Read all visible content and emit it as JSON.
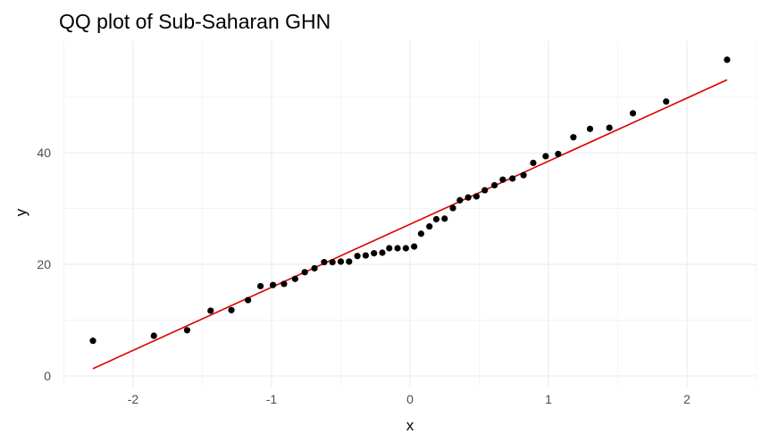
{
  "chart_data": {
    "type": "scatter",
    "title": "QQ plot of Sub-Saharan GHN",
    "xlabel": "x",
    "ylabel": "y",
    "xlim": [
      -2.5,
      2.5
    ],
    "ylim": [
      0,
      57
    ],
    "x_ticks": [
      -2,
      -1,
      0,
      1,
      2
    ],
    "y_ticks": [
      0,
      20,
      40
    ],
    "x_tick_labels": [
      "-2",
      "-1",
      "0",
      "1",
      "2"
    ],
    "y_tick_labels": [
      "0",
      "20",
      "40"
    ],
    "grid": true,
    "legend": "none",
    "point_color": "#000000",
    "line_color": "#dd0000",
    "points": [
      {
        "x": -2.29,
        "y": 6.3
      },
      {
        "x": -1.85,
        "y": 7.2
      },
      {
        "x": -1.61,
        "y": 8.2
      },
      {
        "x": -1.44,
        "y": 11.7
      },
      {
        "x": -1.29,
        "y": 11.8
      },
      {
        "x": -1.17,
        "y": 13.6
      },
      {
        "x": -1.08,
        "y": 16.1
      },
      {
        "x": -0.99,
        "y": 16.3
      },
      {
        "x": -0.91,
        "y": 16.5
      },
      {
        "x": -0.83,
        "y": 17.4
      },
      {
        "x": -0.76,
        "y": 18.6
      },
      {
        "x": -0.69,
        "y": 19.3
      },
      {
        "x": -0.62,
        "y": 20.4
      },
      {
        "x": -0.56,
        "y": 20.4
      },
      {
        "x": -0.5,
        "y": 20.5
      },
      {
        "x": -0.44,
        "y": 20.5
      },
      {
        "x": -0.38,
        "y": 21.5
      },
      {
        "x": -0.32,
        "y": 21.6
      },
      {
        "x": -0.26,
        "y": 22.0
      },
      {
        "x": -0.2,
        "y": 22.1
      },
      {
        "x": -0.15,
        "y": 22.9
      },
      {
        "x": -0.09,
        "y": 22.9
      },
      {
        "x": -0.03,
        "y": 22.9
      },
      {
        "x": 0.03,
        "y": 23.2
      },
      {
        "x": 0.08,
        "y": 25.5
      },
      {
        "x": 0.14,
        "y": 26.8
      },
      {
        "x": 0.19,
        "y": 28.1
      },
      {
        "x": 0.25,
        "y": 28.2
      },
      {
        "x": 0.31,
        "y": 30.1
      },
      {
        "x": 0.36,
        "y": 31.5
      },
      {
        "x": 0.42,
        "y": 32.0
      },
      {
        "x": 0.48,
        "y": 32.2
      },
      {
        "x": 0.54,
        "y": 33.3
      },
      {
        "x": 0.61,
        "y": 34.2
      },
      {
        "x": 0.67,
        "y": 35.2
      },
      {
        "x": 0.74,
        "y": 35.4
      },
      {
        "x": 0.82,
        "y": 36.0
      },
      {
        "x": 0.89,
        "y": 38.2
      },
      {
        "x": 0.98,
        "y": 39.4
      },
      {
        "x": 1.07,
        "y": 39.8
      },
      {
        "x": 1.18,
        "y": 42.8
      },
      {
        "x": 1.3,
        "y": 44.3
      },
      {
        "x": 1.44,
        "y": 44.5
      },
      {
        "x": 1.61,
        "y": 47.1
      },
      {
        "x": 1.85,
        "y": 49.2
      },
      {
        "x": 2.29,
        "y": 56.7
      }
    ],
    "reference_line": {
      "x": [
        -2.29,
        2.29
      ],
      "y": [
        1.3,
        53.1
      ]
    }
  }
}
